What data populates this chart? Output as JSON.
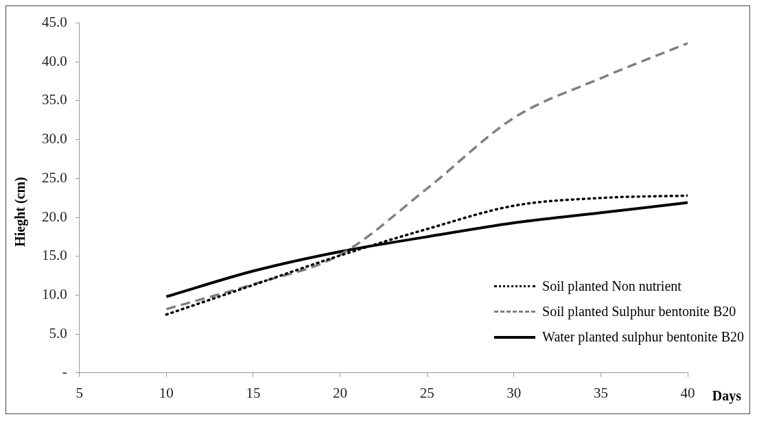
{
  "chart_data": {
    "type": "line",
    "xlabel": "Days",
    "ylabel": "Hieght (cm)",
    "x": [
      10,
      15,
      20,
      25,
      30,
      35,
      40
    ],
    "series": [
      {
        "name": "Soil planted Non nutrient",
        "color": "#000000",
        "line_style": "dotted",
        "values": [
          7.5,
          11.3,
          15.1,
          18.5,
          21.5,
          22.5,
          22.8
        ]
      },
      {
        "name": "Soil planted Sulphur bentonite B20",
        "color": "#808080",
        "line_style": "dashed",
        "values": [
          8.2,
          11.4,
          15.2,
          23.7,
          32.8,
          37.9,
          42.4
        ]
      },
      {
        "name": "Water planted sulphur bentonite B20",
        "color": "#000000",
        "line_style": "solid",
        "values": [
          9.8,
          13.1,
          15.6,
          17.5,
          19.3,
          20.6,
          21.9
        ]
      }
    ],
    "xlim": [
      5,
      40
    ],
    "xticks": [
      5,
      10,
      15,
      20,
      25,
      30,
      35,
      40
    ],
    "ylim": [
      0,
      45
    ],
    "yticks": [
      {
        "value": 0,
        "label": "-"
      },
      {
        "value": 5,
        "label": "5.0"
      },
      {
        "value": 10,
        "label": "10.0"
      },
      {
        "value": 15,
        "label": "15.0"
      },
      {
        "value": 20,
        "label": "20.0"
      },
      {
        "value": 25,
        "label": "25.0"
      },
      {
        "value": 30,
        "label": "30.0"
      },
      {
        "value": 35,
        "label": "35.0"
      },
      {
        "value": 40,
        "label": "40.0"
      },
      {
        "value": 45,
        "label": "45.0"
      }
    ],
    "grid": false,
    "legend": "bottom right",
    "marker": "none"
  }
}
